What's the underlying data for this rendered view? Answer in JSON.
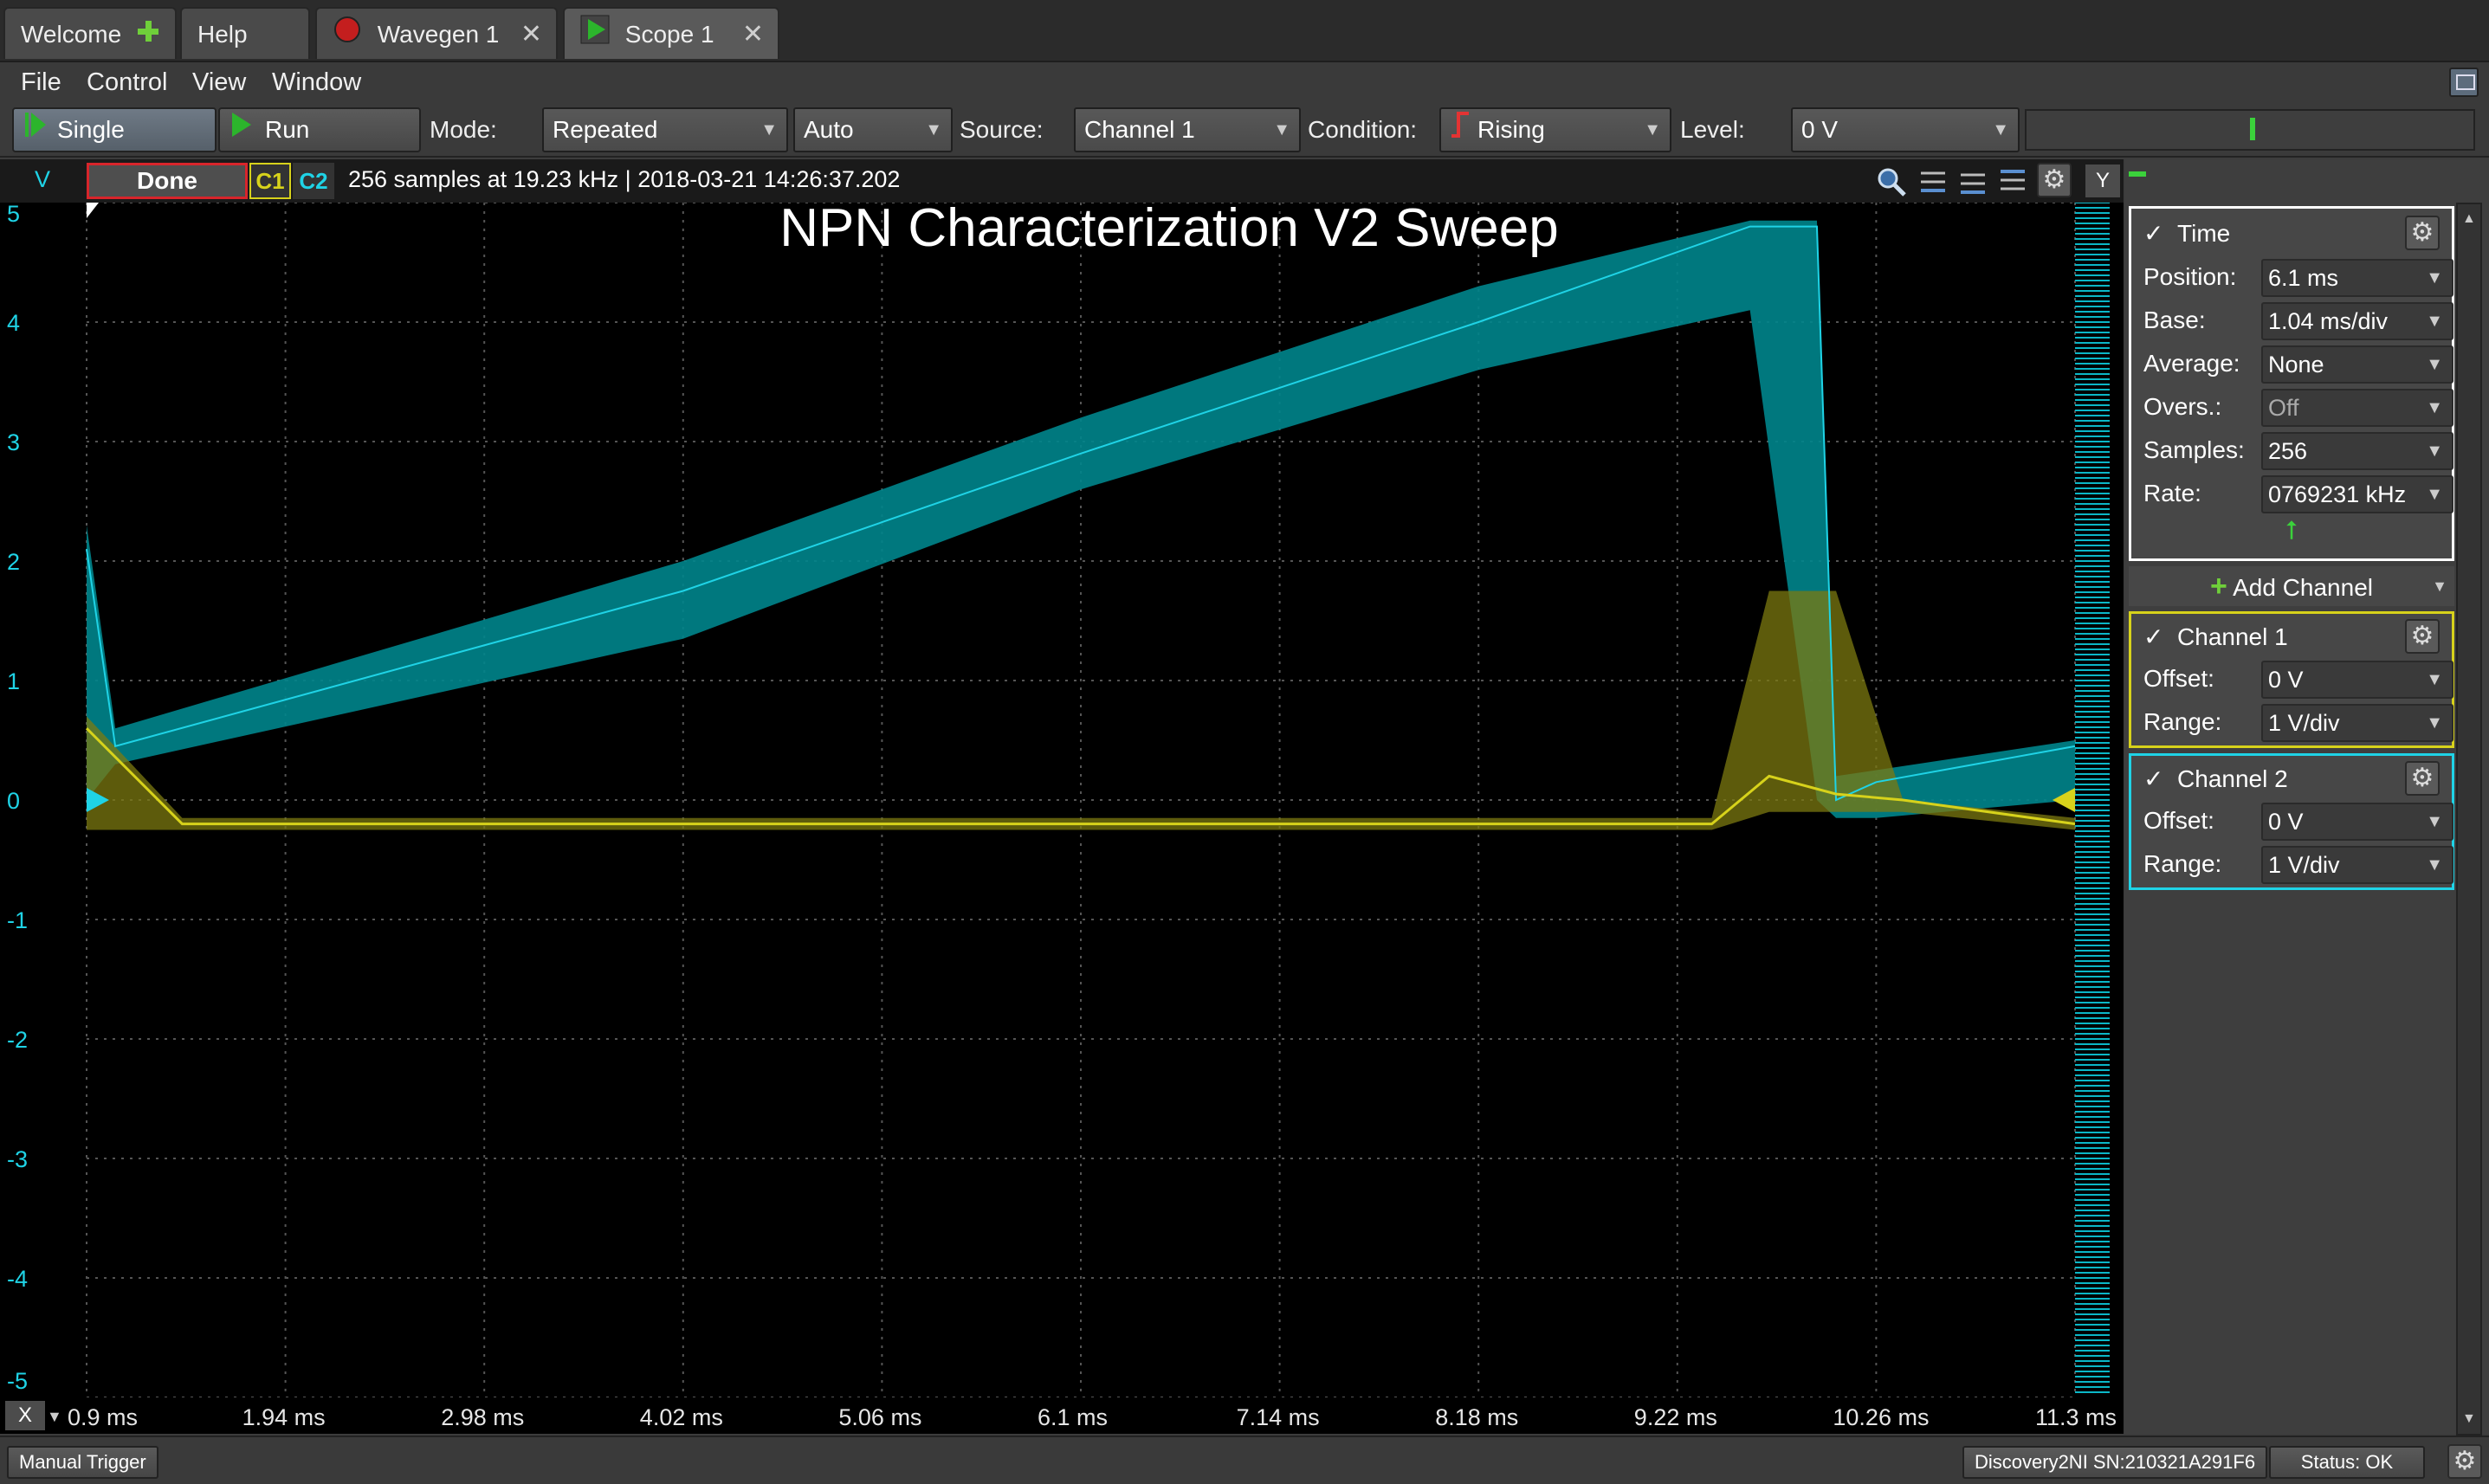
{
  "tabs": [
    {
      "label": "Welcome",
      "icon": "plus-icon"
    },
    {
      "label": "Help"
    },
    {
      "label": "Wavegen 1",
      "icon": "stop-record-icon"
    },
    {
      "label": "Scope 1",
      "icon": "play-icon"
    }
  ],
  "menu": [
    "File",
    "Control",
    "View",
    "Window"
  ],
  "toolbar": {
    "single_label": "Single",
    "run_label": "Run",
    "mode_label": "Mode:",
    "mode_value": "Repeated",
    "auto_value": "Auto",
    "source_label": "Source:",
    "source_value": "Channel 1",
    "condition_label": "Condition:",
    "condition_value": "Rising",
    "level_label": "Level:",
    "level_value": "0 V"
  },
  "status": {
    "v_label": "V",
    "state": "Done",
    "c1": "C1",
    "c2": "C2",
    "info": "256 samples at 19.23 kHz | 2018-03-21 14:26:37.202",
    "y_button": "Y"
  },
  "plot": {
    "title": "NPN Characterization V2 Sweep",
    "y_ticks": [
      "5",
      "4",
      "3",
      "2",
      "1",
      "0",
      "-1",
      "-2",
      "-3",
      "-4",
      "-5"
    ],
    "x_ticks": [
      "0.9 ms",
      "1.94 ms",
      "2.98 ms",
      "4.02 ms",
      "5.06 ms",
      "6.1 ms",
      "7.14 ms",
      "8.18 ms",
      "9.22 ms",
      "10.26 ms",
      "11.3 ms"
    ],
    "x_button": "X",
    "colors": {
      "channel1": "#d7d21b",
      "channel2": "#1fd3e6",
      "band2": "#00858c",
      "band1": "#7c7a10"
    }
  },
  "chart_data": {
    "type": "line",
    "title": "NPN Characterization V2 Sweep",
    "xlabel": "",
    "ylabel": "V",
    "x_unit": "ms",
    "xlim": [
      0.9,
      11.3
    ],
    "ylim": [
      -5,
      5
    ],
    "grid": true,
    "series": [
      {
        "name": "C2",
        "x": [
          0.9,
          1.05,
          4.02,
          6.1,
          8.18,
          9.6,
          9.95,
          10.05,
          10.26,
          11.3
        ],
        "y": [
          2.1,
          0.45,
          1.75,
          2.9,
          4.0,
          4.8,
          4.8,
          0.0,
          0.15,
          0.45
        ],
        "band_low": [
          0.0,
          0.3,
          1.35,
          2.6,
          3.6,
          4.1,
          0.0,
          -0.15,
          -0.15,
          0.0
        ],
        "band_high": [
          2.3,
          0.6,
          2.0,
          3.2,
          4.3,
          4.85,
          4.85,
          0.2,
          0.25,
          0.5
        ]
      },
      {
        "name": "C1",
        "x": [
          0.9,
          1.4,
          9.4,
          9.7,
          10.05,
          10.4,
          11.3
        ],
        "y": [
          0.6,
          -0.2,
          -0.2,
          0.2,
          0.05,
          0.0,
          -0.2
        ],
        "band_low": [
          -0.25,
          -0.25,
          -0.25,
          -0.1,
          -0.1,
          -0.1,
          -0.25
        ],
        "band_high": [
          0.7,
          -0.15,
          -0.15,
          1.75,
          1.75,
          0.0,
          -0.15
        ]
      }
    ]
  },
  "time_panel": {
    "title": "Time",
    "rows": [
      {
        "label": "Position:",
        "value": "6.1 ms"
      },
      {
        "label": "Base:",
        "value": "1.04 ms/div"
      },
      {
        "label": "Average:",
        "value": "None"
      },
      {
        "label": "Overs.:",
        "value": "Off"
      },
      {
        "label": "Samples:",
        "value": "256"
      },
      {
        "label": "Rate:",
        "value": "0769231 kHz"
      }
    ]
  },
  "add_channel_label": "Add Channel",
  "channel1_panel": {
    "title": "Channel 1",
    "offset_label": "Offset:",
    "offset_value": "0 V",
    "range_label": "Range:",
    "range_value": "1 V/div"
  },
  "channel2_panel": {
    "title": "Channel 2",
    "offset_label": "Offset:",
    "offset_value": "0 V",
    "range_label": "Range:",
    "range_value": "1 V/div"
  },
  "bottom": {
    "manual_trigger": "Manual Trigger",
    "device": "Discovery2NI SN:210321A291F6",
    "status": "Status: OK"
  }
}
